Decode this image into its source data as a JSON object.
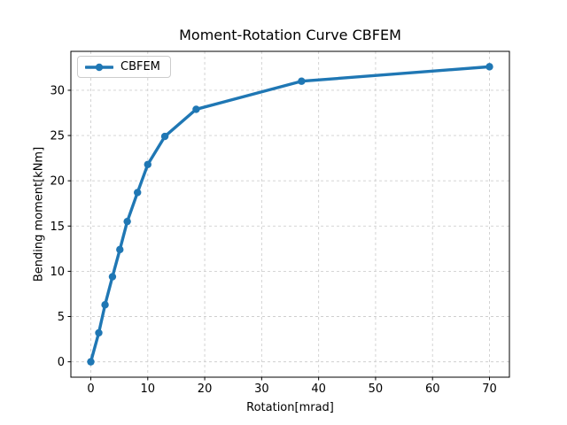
{
  "chart_data": {
    "type": "line",
    "title": "Moment-Rotation Curve CBFEM",
    "xlabel": "Rotation[mrad]",
    "ylabel": "Bending moment[kNm]",
    "series": [
      {
        "name": "CBFEM",
        "color": "#1f77b4",
        "marker": "circle",
        "x": [
          0,
          1.4,
          2.5,
          3.8,
          5.1,
          6.4,
          8.2,
          10.0,
          13.0,
          18.5,
          37.0,
          70.0
        ],
        "y": [
          0,
          3.2,
          6.3,
          9.4,
          12.4,
          15.5,
          18.7,
          21.8,
          24.9,
          27.9,
          31.0,
          32.6
        ]
      }
    ],
    "xticks": [
      0,
      10,
      20,
      30,
      40,
      50,
      60,
      70
    ],
    "yticks": [
      0,
      5,
      10,
      15,
      20,
      25,
      30
    ],
    "xlim": [
      -3.5,
      73.5
    ],
    "ylim": [
      -1.7,
      34.3
    ],
    "grid": true,
    "legend_position": "upper left",
    "style": {
      "grid_color": "#cfcfcf",
      "spine_color": "#000000",
      "tick_label_color": "#000000",
      "background": "#ffffff",
      "line_width": 3.4,
      "marker_radius": 4.2
    }
  }
}
